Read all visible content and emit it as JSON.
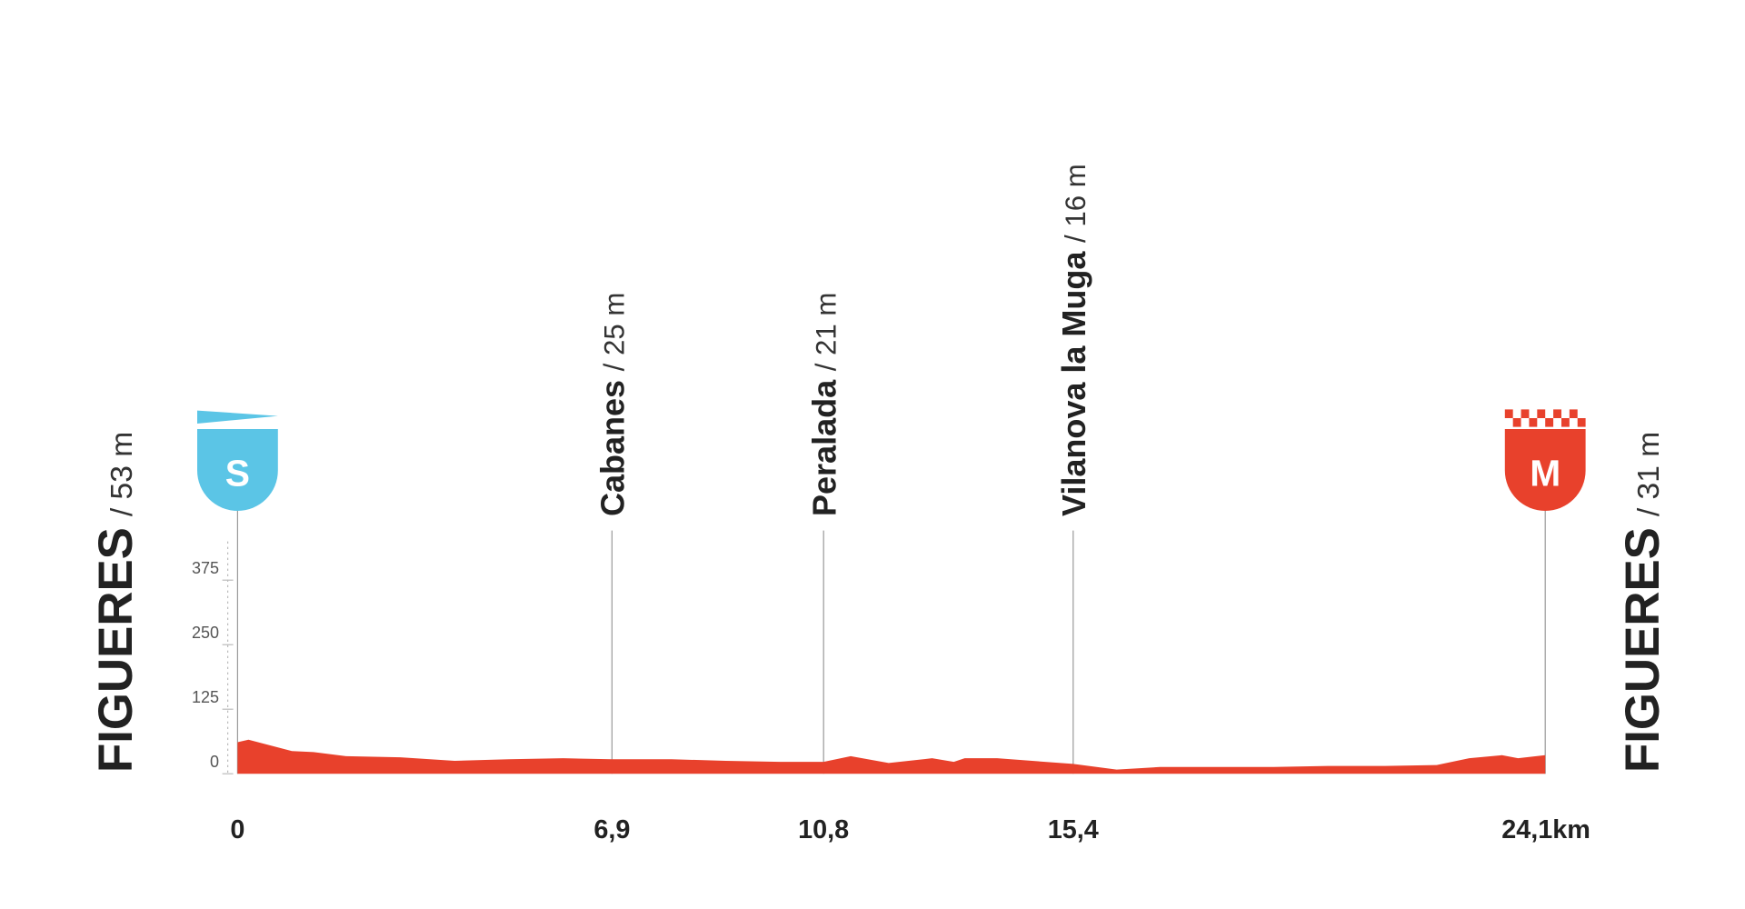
{
  "chart_data": {
    "type": "area",
    "color": "#e8412c",
    "x": [
      0,
      0.2,
      1.0,
      1.4,
      2.0,
      3.0,
      4.0,
      5.0,
      6.0,
      6.9,
      8.0,
      9.0,
      10.0,
      10.8,
      11.3,
      12.0,
      12.8,
      13.2,
      13.4,
      14.0,
      15.4,
      16.2,
      17.0,
      18.0,
      19.1,
      20.1,
      21.1,
      22.1,
      22.7,
      23.3,
      23.6,
      24.1
    ],
    "values": [
      61,
      66,
      44,
      42,
      34,
      32,
      25,
      28,
      30,
      28,
      28,
      25,
      23,
      23,
      34,
      21,
      30,
      23,
      30,
      30,
      19,
      8,
      13,
      13,
      13,
      15,
      15,
      17,
      30,
      36,
      30,
      36
    ],
    "xlim": [
      0,
      24.1
    ],
    "xticks": [
      0,
      {
        "value": 6.9,
        "label": "6,9"
      },
      {
        "value": 10.8,
        "label": "10,8"
      },
      {
        "value": 15.4,
        "label": "15,4"
      },
      {
        "value": 24.1,
        "label": "24,1km"
      }
    ],
    "ylim": [
      0,
      450
    ],
    "yticks": [
      0,
      125,
      250,
      375
    ],
    "waypoints": [
      {
        "name": "FIGUERES",
        "elevation": {
          "value": 53,
          "label": "/ 53 m"
        },
        "badge": "S",
        "badge_color": "#5bc5e6"
      },
      {
        "name": "Cabanes",
        "elevation": {
          "value": 25,
          "label": "/ 25 m"
        }
      },
      {
        "name": "Peralada",
        "elevation": {
          "value": 21,
          "label": "/ 21 m"
        }
      },
      {
        "name": "Vilanova la Muga",
        "elevation": {
          "value": 16,
          "label": "/ 16 m"
        }
      },
      {
        "name": "FIGUERES",
        "elevation": {
          "value": 31,
          "label": "/ 31 m"
        },
        "badge": "M",
        "badge_color": "#e8412c"
      }
    ]
  }
}
